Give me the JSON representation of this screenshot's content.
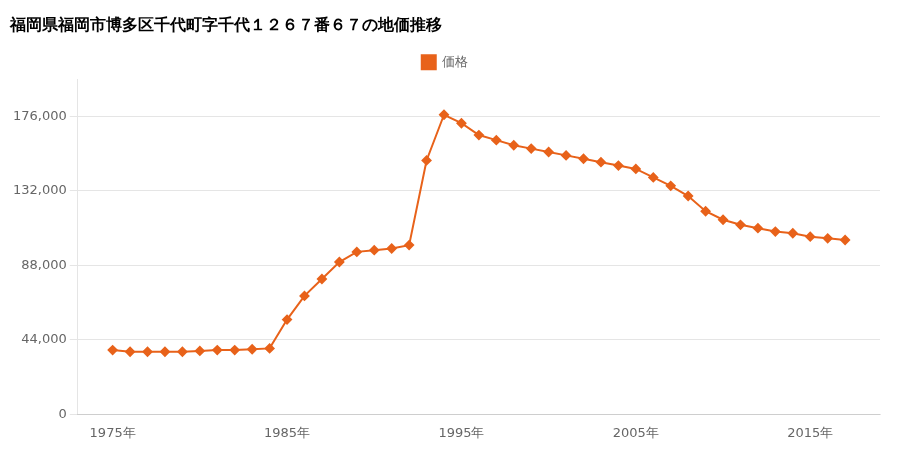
{
  "chart_data": {
    "type": "line",
    "title": "福岡県福岡市博多区千代町字千代１２６７番６７の地価推移",
    "x": [
      1975,
      1976,
      1977,
      1978,
      1979,
      1980,
      1981,
      1982,
      1983,
      1984,
      1985,
      1986,
      1987,
      1988,
      1989,
      1990,
      1991,
      1992,
      1993,
      1994,
      1995,
      1996,
      1997,
      1998,
      1999,
      2000,
      2001,
      2002,
      2003,
      2004,
      2005,
      2006,
      2007,
      2008,
      2009,
      2010,
      2011,
      2012,
      2013,
      2014,
      2015,
      2016,
      2017
    ],
    "series": [
      {
        "name": "価格",
        "color": "#e8621a",
        "marker": "diamond",
        "values": [
          38000,
          37000,
          37000,
          37000,
          37000,
          37500,
          38000,
          38000,
          38500,
          39000,
          56000,
          70000,
          80000,
          90000,
          96000,
          97000,
          98000,
          100000,
          150000,
          177000,
          172000,
          165000,
          162000,
          159000,
          157000,
          155000,
          153000,
          151000,
          149000,
          147000,
          145000,
          140000,
          135000,
          129000,
          120000,
          115000,
          112000,
          110000,
          108000,
          107000,
          105000,
          104000,
          103000
        ]
      }
    ],
    "xlim": [
      1973,
      2019
    ],
    "xticks": [
      {
        "value": 1975,
        "label": "1975年"
      },
      {
        "value": 1985,
        "label": "1985年"
      },
      {
        "value": 1995,
        "label": "1995年"
      },
      {
        "value": 2005,
        "label": "2005年"
      },
      {
        "value": 2015,
        "label": "2015年"
      }
    ],
    "ylim": [
      0,
      198000
    ],
    "yticks": [
      0,
      {
        "value": 44000,
        "label": "44,000"
      },
      {
        "value": 88000,
        "label": "88,000"
      },
      {
        "value": 132000,
        "label": "132,000"
      },
      {
        "value": 176000,
        "label": "176,000"
      }
    ],
    "grid": "y",
    "legend": "top"
  }
}
